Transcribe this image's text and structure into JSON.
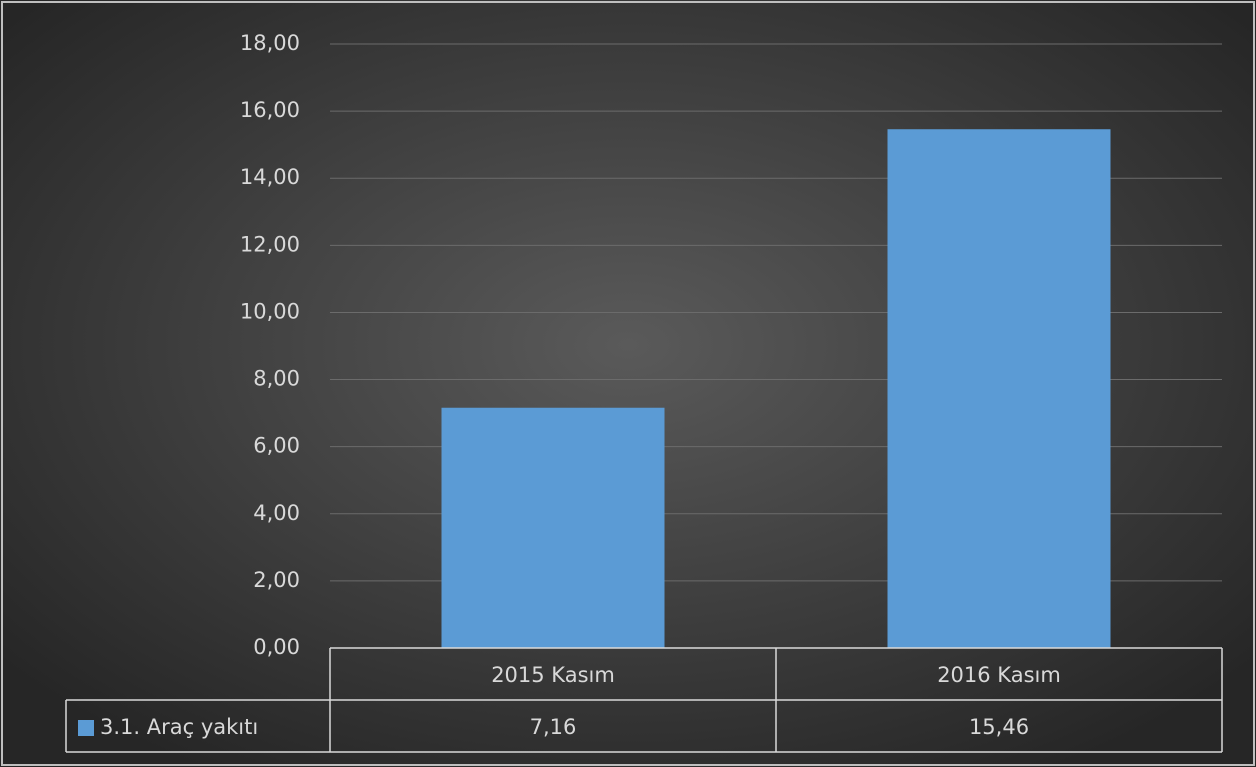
{
  "chart_data": {
    "type": "bar",
    "categories": [
      "2015 Kasım",
      "2016 Kasım"
    ],
    "series": [
      {
        "name": "3.1. Araç yakıtı",
        "color": "#5b9bd5",
        "values": [
          7.16,
          15.46
        ],
        "value_labels": [
          "7,16",
          "15,46"
        ]
      }
    ],
    "ylim": [
      0,
      18
    ],
    "yticks": [
      {
        "value": 0,
        "label": "0,00"
      },
      {
        "value": 2,
        "label": "2,00"
      },
      {
        "value": 4,
        "label": "4,00"
      },
      {
        "value": 6,
        "label": "6,00"
      },
      {
        "value": 8,
        "label": "8,00"
      },
      {
        "value": 10,
        "label": "10,00"
      },
      {
        "value": 12,
        "label": "12,00"
      },
      {
        "value": 14,
        "label": "14,00"
      },
      {
        "value": 16,
        "label": "16,00"
      },
      {
        "value": 18,
        "label": "18,00"
      }
    ],
    "grid": true
  }
}
